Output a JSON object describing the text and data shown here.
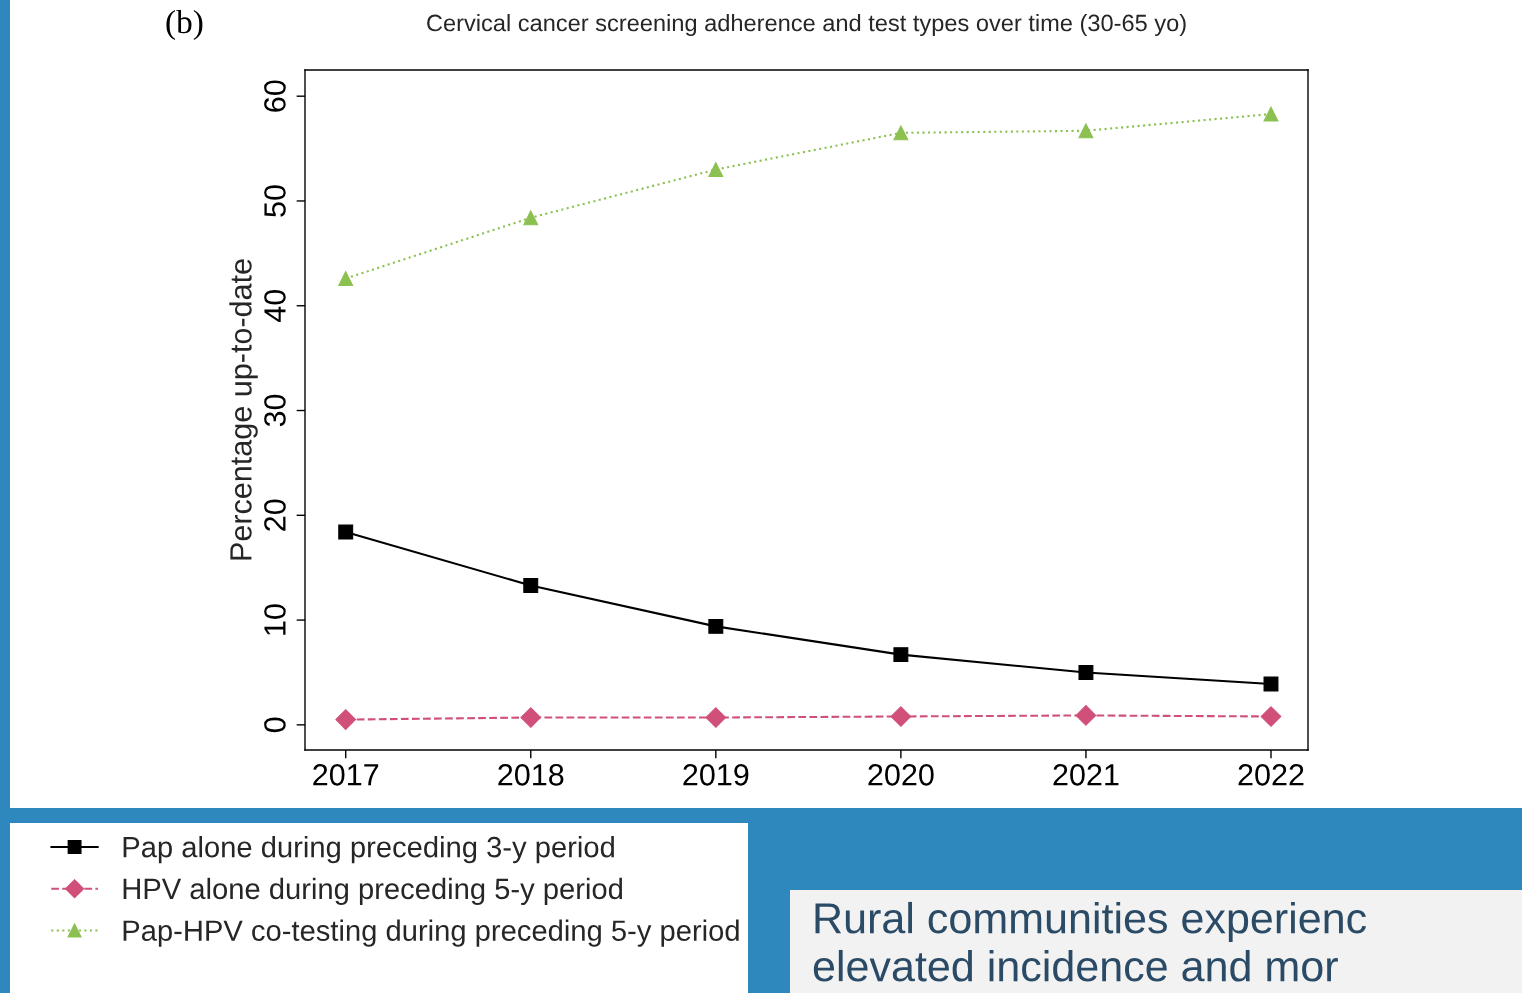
{
  "chart_data": {
    "type": "line",
    "title": "Cervical cancer screening adherence and test types over time (30-65 yo)",
    "ylabel": "Percentage up-to-date",
    "x": [
      2017,
      2018,
      2019,
      2020,
      2021,
      2022
    ],
    "series": [
      {
        "name": "Pap alone during preceding 3-y period",
        "color": "#000000",
        "marker": "square",
        "line_style": "solid",
        "values": [
          18.4,
          13.3,
          9.4,
          6.7,
          5.0,
          3.9
        ]
      },
      {
        "name": "HPV alone during preceding 5-y period",
        "color": "#d0507a",
        "marker": "diamond",
        "line_style": "dashed",
        "values": [
          0.5,
          0.7,
          0.7,
          0.8,
          0.9,
          0.8
        ]
      },
      {
        "name": "Pap-HPV co-testing during preceding 5-y period",
        "color": "#8cc152",
        "marker": "triangle",
        "line_style": "dotted",
        "values": [
          42.6,
          48.4,
          53.0,
          56.5,
          56.7,
          58.3
        ]
      }
    ],
    "xlim": [
      2016.78,
      2022.2
    ],
    "xticks": [
      2017,
      2018,
      2019,
      2020,
      2021,
      2022
    ],
    "ylim": [
      -2.4,
      62.5
    ],
    "yticks": [
      0,
      10,
      20,
      30,
      40,
      50,
      60
    ],
    "grid": false,
    "legend": "bottom left",
    "annotations": [
      "(b)",
      "Rural communities experienc",
      "elevated incidence and mor"
    ]
  }
}
